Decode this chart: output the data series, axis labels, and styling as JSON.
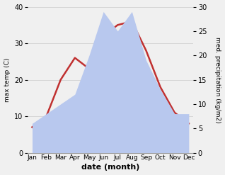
{
  "months": [
    "Jan",
    "Feb",
    "Mar",
    "Apr",
    "May",
    "Jun",
    "Jul",
    "Aug",
    "Sep",
    "Oct",
    "Nov",
    "Dec"
  ],
  "temp": [
    7,
    10,
    20,
    26,
    23,
    32,
    35,
    36,
    28,
    18,
    11,
    8
  ],
  "precip": [
    6,
    8,
    10,
    12,
    20,
    29,
    25,
    29,
    19,
    13,
    8,
    8
  ],
  "temp_ylim": [
    0,
    40
  ],
  "precip_ylim": [
    0,
    30
  ],
  "temp_color": "#c03030",
  "precip_fill_color": "#b8c8ee",
  "xlabel": "date (month)",
  "ylabel_left": "max temp (C)",
  "ylabel_right": "med. precipitation (kg/m2)",
  "background_color": "#f0f0f0",
  "temp_linewidth": 1.8,
  "figsize": [
    3.18,
    2.47
  ],
  "dpi": 100
}
